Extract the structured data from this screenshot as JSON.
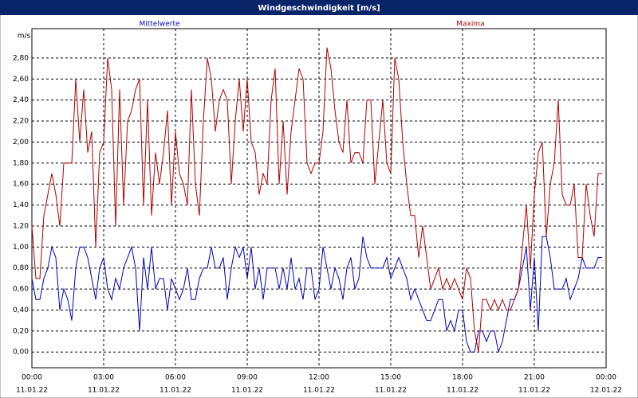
{
  "chart_data": {
    "type": "line",
    "title": "Windgeschwindigkeit [m/s]",
    "y_label": "m/s",
    "x": [
      0,
      10,
      20,
      30,
      40,
      50,
      60,
      70,
      80,
      90,
      100,
      110,
      120,
      130,
      140,
      150,
      160,
      170,
      180,
      190,
      200,
      210,
      220,
      230,
      240,
      250,
      260,
      270,
      280,
      290,
      300,
      310,
      320,
      330,
      340,
      350,
      360,
      370,
      380,
      390,
      400,
      410,
      420,
      430,
      440,
      450,
      460,
      470,
      480,
      490,
      500,
      510,
      520,
      530,
      540,
      550,
      560,
      570,
      580,
      590,
      600,
      610,
      620,
      630,
      640,
      650,
      660,
      670,
      680,
      690,
      700,
      710,
      720,
      730,
      740,
      750,
      760,
      770,
      780,
      790,
      800,
      810,
      820,
      830,
      840,
      850,
      860,
      870,
      880,
      890,
      900,
      910,
      920,
      930,
      940,
      950,
      960,
      970,
      980,
      990,
      1000,
      1010,
      1020,
      1030,
      1040,
      1050,
      1060,
      1070,
      1080,
      1090,
      1100,
      1110,
      1120,
      1130,
      1140,
      1150,
      1160,
      1170,
      1180,
      1190,
      1200,
      1210,
      1220,
      1230,
      1240,
      1250,
      1260,
      1270,
      1280,
      1290,
      1300,
      1310,
      1320,
      1330,
      1340,
      1350,
      1360,
      1370,
      1380,
      1390,
      1400,
      1410,
      1420,
      1430
    ],
    "series": [
      {
        "name": "Mittelwerte",
        "color": "#0000c0",
        "values": [
          0.7,
          0.5,
          0.5,
          0.7,
          0.8,
          1.0,
          0.9,
          0.4,
          0.6,
          0.5,
          0.3,
          0.8,
          1.0,
          1.0,
          0.9,
          0.7,
          0.5,
          0.8,
          0.9,
          0.6,
          0.5,
          0.7,
          0.6,
          0.8,
          0.9,
          1.0,
          0.8,
          0.2,
          0.9,
          0.6,
          1.0,
          0.6,
          0.7,
          0.7,
          0.4,
          0.7,
          0.6,
          0.5,
          0.6,
          0.8,
          0.5,
          0.5,
          0.7,
          0.8,
          0.8,
          1.0,
          0.8,
          0.8,
          0.9,
          0.5,
          0.8,
          1.0,
          0.9,
          1.0,
          0.7,
          1.0,
          0.6,
          0.8,
          0.5,
          0.8,
          0.8,
          0.8,
          0.6,
          0.8,
          0.6,
          0.9,
          0.6,
          0.7,
          0.5,
          0.8,
          0.8,
          0.5,
          0.6,
          1.0,
          0.8,
          0.6,
          0.8,
          0.7,
          0.5,
          0.8,
          0.9,
          0.6,
          0.7,
          1.1,
          0.9,
          0.8,
          0.8,
          0.8,
          0.8,
          0.9,
          0.7,
          0.8,
          0.9,
          0.8,
          0.7,
          0.5,
          0.6,
          0.5,
          0.4,
          0.3,
          0.3,
          0.4,
          0.5,
          0.5,
          0.2,
          0.3,
          0.2,
          0.4,
          0.4,
          0.1,
          0.0,
          0.0,
          0.2,
          0.2,
          0.1,
          0.2,
          0.2,
          0.0,
          0.1,
          0.3,
          0.5,
          0.5,
          0.6,
          0.8,
          1.0,
          0.4,
          0.9,
          0.2,
          1.1,
          1.1,
          0.9,
          0.6,
          0.6,
          0.6,
          0.7,
          0.5,
          0.6,
          0.7,
          0.9,
          0.8,
          0.8,
          0.8,
          0.9,
          0.9
        ]
      },
      {
        "name": "Maxima",
        "color": "#b00000",
        "values": [
          1.2,
          0.7,
          0.7,
          1.3,
          1.5,
          1.7,
          1.5,
          1.2,
          1.8,
          1.8,
          1.8,
          2.6,
          2.0,
          2.5,
          1.9,
          2.1,
          1.0,
          1.9,
          2.0,
          2.8,
          2.5,
          1.2,
          2.5,
          1.4,
          2.2,
          2.3,
          2.5,
          2.6,
          1.4,
          2.4,
          1.3,
          1.9,
          1.6,
          1.9,
          2.3,
          1.4,
          2.1,
          1.7,
          1.6,
          1.4,
          2.5,
          1.6,
          1.3,
          2.2,
          2.8,
          2.6,
          2.1,
          2.4,
          2.5,
          2.4,
          1.6,
          2.2,
          2.6,
          2.1,
          2.6,
          2.0,
          1.9,
          1.5,
          1.7,
          1.6,
          2.4,
          2.7,
          1.6,
          2.2,
          1.5,
          2.1,
          2.4,
          2.7,
          2.6,
          1.8,
          1.7,
          1.8,
          1.8,
          2.1,
          2.9,
          2.7,
          2.3,
          2.0,
          1.9,
          2.4,
          1.8,
          1.9,
          1.9,
          1.8,
          2.4,
          2.4,
          1.6,
          2.0,
          2.4,
          1.8,
          1.7,
          2.8,
          2.6,
          2.0,
          1.6,
          1.3,
          1.3,
          0.9,
          1.2,
          0.9,
          0.6,
          0.7,
          0.8,
          0.6,
          0.7,
          0.6,
          0.7,
          0.6,
          0.5,
          0.8,
          0.7,
          0.2,
          0.0,
          0.5,
          0.5,
          0.4,
          0.5,
          0.4,
          0.5,
          0.4,
          0.4,
          0.5,
          0.6,
          1.0,
          1.4,
          0.8,
          1.5,
          1.9,
          2.0,
          1.1,
          1.6,
          1.8,
          2.4,
          1.5,
          1.4,
          1.4,
          1.6,
          0.9,
          0.9,
          1.6,
          1.3,
          1.1,
          1.7,
          1.7
        ]
      }
    ],
    "xlim": [
      0,
      1440
    ],
    "xticks": [
      {
        "value": 0,
        "label": "00:00"
      },
      {
        "value": 180,
        "label": "03:00"
      },
      {
        "value": 360,
        "label": "06:00"
      },
      {
        "value": 540,
        "label": "09:00"
      },
      {
        "value": 720,
        "label": "12:00"
      },
      {
        "value": 900,
        "label": "15:00"
      },
      {
        "value": 1080,
        "label": "18:00"
      },
      {
        "value": 1260,
        "label": "21:00"
      },
      {
        "value": 1440,
        "label": "00:00"
      }
    ],
    "xtick_dates": [
      "11.01.22",
      "11.01.22",
      "11.01.22",
      "11.01.22",
      "11.01.22",
      "11.01.22",
      "11.01.22",
      "11.01.22",
      "12.01.22"
    ],
    "ylim": [
      -0.15,
      3.08
    ],
    "yticks": [
      {
        "value": 0,
        "label": "0,00"
      },
      {
        "value": 0.2,
        "label": "0,20"
      },
      {
        "value": 0.4,
        "label": "0,40"
      },
      {
        "value": 0.6,
        "label": "0,60"
      },
      {
        "value": 0.8,
        "label": "0,80"
      },
      {
        "value": 1.0,
        "label": "1,00"
      },
      {
        "value": 1.2,
        "label": "1,20"
      },
      {
        "value": 1.4,
        "label": "1,40"
      },
      {
        "value": 1.6,
        "label": "1,60"
      },
      {
        "value": 1.8,
        "label": "1,80"
      },
      {
        "value": 2.0,
        "label": "2,00"
      },
      {
        "value": 2.2,
        "label": "2,20"
      },
      {
        "value": 2.4,
        "label": "2,40"
      },
      {
        "value": 2.6,
        "label": "2,60"
      },
      {
        "value": 2.8,
        "label": "2,80"
      }
    ],
    "grid": true
  }
}
